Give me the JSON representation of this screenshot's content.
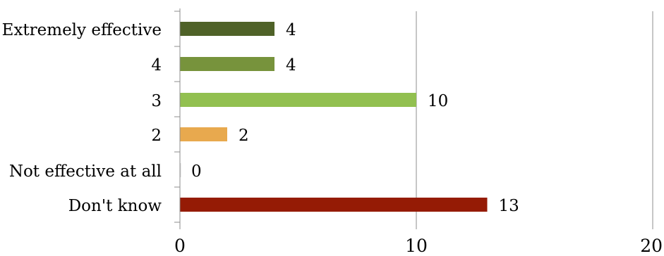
{
  "chart_data": {
    "type": "bar",
    "orientation": "horizontal",
    "categories": [
      "Extremely effective",
      "4",
      "3",
      "2",
      "Not effective at all",
      "Don't know"
    ],
    "values": [
      4,
      4,
      10,
      2,
      0,
      13
    ],
    "xlim": [
      0,
      20
    ],
    "x_ticks": [
      0,
      10,
      20
    ],
    "grid": true,
    "legend": "none",
    "data_labels": true,
    "colors": [
      "#4f6228",
      "#77933c",
      "#92c050",
      "#e8a94e",
      "#d9d9d9",
      "#951b05"
    ]
  }
}
